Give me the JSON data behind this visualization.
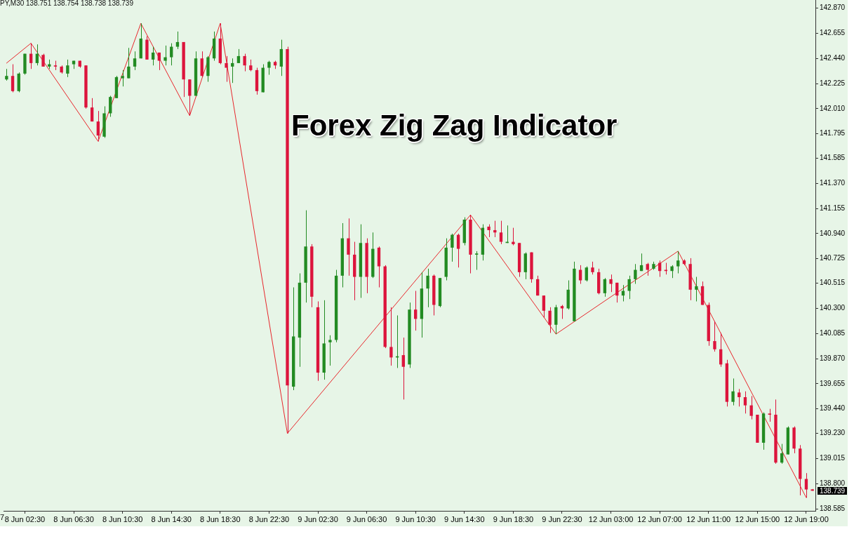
{
  "chart_data": {
    "type": "candlestick",
    "title": "Forex Zig Zag Indicator",
    "annotations": [
      "PY,M30 138.751 138.754 138.738 138.739",
      "7",
      "138.739"
    ],
    "categories": [
      null,
      null,
      null,
      "8 Jun 02:30",
      null,
      null,
      null,
      null,
      null,
      null,
      null,
      "8 Jun 06:30",
      null,
      null,
      null,
      null,
      null,
      null,
      null,
      "8 Jun 10:30",
      null,
      null,
      null,
      null,
      null,
      null,
      null,
      "8 Jun 14:30",
      null,
      null,
      null,
      null,
      null,
      null,
      null,
      "8 Jun 18:30",
      null,
      null,
      null,
      null,
      null,
      null,
      null,
      "8 Jun 22:30",
      null,
      null,
      null,
      null,
      null,
      null,
      null,
      "9 Jun 02:30",
      null,
      null,
      null,
      null,
      null,
      null,
      null,
      "9 Jun 06:30",
      null,
      null,
      null,
      null,
      null,
      null,
      null,
      "9 Jun 10:30",
      null,
      null,
      null,
      null,
      null,
      null,
      null,
      "9 Jun 14:30",
      null,
      null,
      null,
      null,
      null,
      null,
      null,
      "9 Jun 18:30",
      null,
      null,
      null,
      null,
      null,
      null,
      null,
      "9 Jun 22:30",
      null,
      null,
      null,
      null,
      null,
      null,
      null,
      "12 Jun 03:00",
      null,
      null,
      null,
      null,
      null,
      null,
      null,
      "12 Jun 07:00",
      null,
      null,
      null,
      null,
      null,
      null,
      null,
      "12 Jun 11:00",
      null,
      null,
      null,
      null,
      null,
      null,
      null,
      "12 Jun 15:00",
      null,
      null,
      null,
      null,
      null,
      null,
      null,
      "12 Jun 19:00",
      null
    ],
    "ohlc": [
      [
        142.26,
        142.35,
        142.25,
        142.29
      ],
      [
        142.29,
        142.39,
        142.15,
        142.16
      ],
      [
        142.16,
        142.32,
        142.15,
        142.31
      ],
      [
        142.31,
        142.48,
        142.3,
        142.48
      ],
      [
        142.48,
        142.57,
        142.35,
        142.4
      ],
      [
        142.4,
        142.56,
        142.38,
        142.48
      ],
      [
        142.47,
        142.48,
        142.37,
        142.37
      ],
      [
        142.37,
        142.43,
        142.35,
        142.39
      ],
      [
        142.38,
        142.42,
        142.34,
        142.37
      ],
      [
        142.37,
        142.38,
        142.31,
        142.32
      ],
      [
        142.31,
        142.43,
        142.28,
        142.38
      ],
      [
        142.39,
        142.42,
        142.35,
        142.42
      ],
      [
        142.42,
        142.42,
        142.36,
        142.37
      ],
      [
        142.38,
        142.38,
        142.01,
        142.02
      ],
      [
        142.02,
        142.1,
        141.9,
        141.9
      ],
      [
        141.9,
        141.99,
        141.73,
        141.78
      ],
      [
        141.77,
        142.03,
        141.76,
        141.97
      ],
      [
        141.97,
        142.12,
        141.94,
        142.11
      ],
      [
        142.1,
        142.29,
        142.1,
        142.28
      ],
      [
        142.27,
        142.34,
        142.2,
        142.29
      ],
      [
        142.27,
        142.53,
        142.27,
        142.37
      ],
      [
        142.37,
        142.5,
        142.34,
        142.44
      ],
      [
        142.44,
        142.74,
        142.44,
        142.61
      ],
      [
        142.6,
        142.63,
        142.43,
        142.43
      ],
      [
        142.43,
        142.54,
        142.38,
        142.49
      ],
      [
        142.49,
        142.49,
        142.34,
        142.42
      ],
      [
        142.42,
        142.55,
        142.38,
        142.45
      ],
      [
        142.45,
        142.57,
        142.38,
        142.54
      ],
      [
        142.54,
        142.67,
        142.52,
        142.58
      ],
      [
        142.58,
        142.58,
        142.11,
        142.26
      ],
      [
        142.26,
        142.26,
        141.95,
        142.12
      ],
      [
        142.12,
        142.5,
        142.12,
        142.44
      ],
      [
        142.44,
        142.5,
        142.28,
        142.29
      ],
      [
        142.29,
        142.46,
        142.24,
        142.45
      ],
      [
        142.44,
        142.67,
        142.42,
        142.61
      ],
      [
        142.61,
        142.74,
        142.39,
        142.4
      ],
      [
        142.4,
        142.46,
        142.24,
        142.36
      ],
      [
        142.37,
        142.44,
        142.23,
        142.4
      ],
      [
        142.4,
        142.52,
        142.4,
        142.46
      ],
      [
        142.46,
        142.48,
        142.33,
        142.38
      ],
      [
        142.38,
        142.43,
        142.33,
        142.34
      ],
      [
        142.34,
        142.36,
        142.13,
        142.16
      ],
      [
        142.15,
        142.39,
        142.15,
        142.36
      ],
      [
        142.36,
        142.42,
        142.3,
        142.41
      ],
      [
        142.41,
        142.42,
        142.35,
        142.38
      ],
      [
        142.37,
        142.6,
        142.29,
        142.52
      ],
      [
        142.52,
        142.54,
        139.23,
        139.64
      ],
      [
        139.63,
        140.48,
        139.6,
        140.06
      ],
      [
        140.05,
        140.6,
        139.8,
        140.52
      ],
      [
        140.52,
        141.14,
        140.35,
        140.83
      ],
      [
        140.83,
        140.85,
        140.31,
        140.4
      ],
      [
        140.31,
        140.36,
        139.68,
        139.75
      ],
      [
        139.75,
        140.37,
        139.69,
        140.0
      ],
      [
        140.01,
        140.07,
        139.81,
        140.03
      ],
      [
        140.03,
        140.63,
        140.01,
        140.58
      ],
      [
        140.58,
        141.03,
        140.48,
        140.9
      ],
      [
        140.9,
        141.07,
        140.58,
        140.76
      ],
      [
        140.76,
        140.87,
        140.37,
        140.57
      ],
      [
        140.57,
        141.02,
        140.39,
        140.86
      ],
      [
        140.86,
        140.9,
        140.43,
        140.57
      ],
      [
        140.57,
        140.95,
        140.56,
        140.81
      ],
      [
        140.82,
        140.83,
        140.48,
        140.66
      ],
      [
        140.66,
        140.67,
        139.96,
        139.97
      ],
      [
        139.97,
        140.31,
        139.81,
        139.88
      ],
      [
        139.88,
        140.24,
        139.79,
        139.89
      ],
      [
        139.9,
        140.05,
        139.52,
        139.8
      ],
      [
        139.82,
        140.35,
        139.79,
        140.29
      ],
      [
        140.29,
        140.45,
        140.11,
        140.21
      ],
      [
        140.21,
        140.61,
        140.05,
        140.47
      ],
      [
        140.47,
        140.64,
        140.31,
        140.58
      ],
      [
        140.58,
        140.59,
        140.24,
        140.33
      ],
      [
        140.32,
        140.56,
        140.31,
        140.56
      ],
      [
        140.57,
        140.9,
        140.54,
        140.82
      ],
      [
        140.82,
        140.94,
        140.7,
        140.93
      ],
      [
        140.93,
        140.94,
        140.65,
        140.81
      ],
      [
        140.86,
        141.08,
        140.84,
        141.06
      ],
      [
        141.06,
        141.1,
        140.6,
        140.76
      ],
      [
        140.76,
        140.79,
        140.63,
        140.77
      ],
      [
        140.76,
        141.02,
        140.71,
        140.99
      ],
      [
        141.0,
        141.02,
        140.91,
        140.97
      ],
      [
        140.97,
        141.05,
        140.91,
        140.95
      ],
      [
        140.95,
        141.05,
        140.85,
        140.87
      ],
      [
        140.86,
        141.01,
        140.86,
        140.87
      ],
      [
        140.87,
        140.99,
        140.84,
        140.85
      ],
      [
        140.86,
        140.86,
        140.57,
        140.61
      ],
      [
        140.61,
        140.78,
        140.55,
        140.77
      ],
      [
        140.78,
        140.78,
        140.52,
        140.55
      ],
      [
        140.55,
        140.58,
        140.41,
        140.41
      ],
      [
        140.41,
        140.41,
        140.22,
        140.28
      ],
      [
        140.28,
        140.31,
        140.09,
        140.16
      ],
      [
        140.16,
        140.33,
        140.08,
        140.31
      ],
      [
        140.32,
        140.33,
        140.21,
        140.3
      ],
      [
        140.3,
        140.54,
        140.29,
        140.46
      ],
      [
        140.19,
        140.7,
        140.19,
        140.64
      ],
      [
        140.63,
        140.67,
        140.51,
        140.54
      ],
      [
        140.54,
        140.66,
        140.53,
        140.65
      ],
      [
        140.65,
        140.7,
        140.59,
        140.61
      ],
      [
        140.61,
        140.64,
        140.42,
        140.43
      ],
      [
        140.43,
        140.56,
        140.4,
        140.55
      ],
      [
        140.55,
        140.59,
        140.44,
        140.51
      ],
      [
        140.52,
        140.52,
        140.35,
        140.41
      ],
      [
        140.41,
        140.5,
        140.36,
        140.45
      ],
      [
        140.45,
        140.58,
        140.38,
        140.55
      ],
      [
        140.55,
        140.68,
        140.51,
        140.63
      ],
      [
        140.62,
        140.77,
        140.62,
        140.67
      ],
      [
        140.68,
        140.69,
        140.58,
        140.63
      ],
      [
        140.64,
        140.7,
        140.63,
        140.68
      ],
      [
        140.69,
        140.71,
        140.57,
        140.62
      ],
      [
        140.63,
        140.69,
        140.59,
        140.62
      ],
      [
        140.62,
        140.67,
        140.56,
        140.66
      ],
      [
        140.66,
        140.79,
        140.6,
        140.71
      ],
      [
        140.71,
        140.72,
        140.67,
        140.68
      ],
      [
        140.68,
        140.73,
        140.37,
        140.46
      ],
      [
        140.46,
        140.57,
        140.36,
        140.49
      ],
      [
        140.49,
        140.53,
        140.33,
        140.33
      ],
      [
        140.33,
        140.35,
        139.98,
        140.02
      ],
      [
        140.02,
        140.19,
        139.93,
        139.95
      ],
      [
        139.95,
        140.09,
        139.8,
        139.82
      ],
      [
        139.83,
        139.86,
        139.46,
        139.5
      ],
      [
        139.5,
        139.7,
        139.47,
        139.59
      ],
      [
        139.58,
        139.61,
        139.46,
        139.54
      ],
      [
        139.54,
        139.59,
        139.4,
        139.47
      ],
      [
        139.47,
        139.55,
        139.35,
        139.38
      ],
      [
        139.39,
        139.39,
        139.15,
        139.15
      ],
      [
        139.15,
        139.41,
        139.09,
        139.4
      ],
      [
        139.4,
        139.44,
        139.33,
        139.39
      ],
      [
        139.39,
        139.52,
        138.97,
        138.98
      ],
      [
        138.98,
        139.14,
        138.97,
        139.06
      ],
      [
        139.05,
        139.29,
        139.05,
        139.28
      ],
      [
        139.28,
        139.29,
        139.06,
        139.1
      ],
      [
        139.1,
        139.13,
        138.7,
        138.84
      ],
      [
        138.84,
        138.89,
        138.68,
        138.75
      ],
      [
        138.751,
        138.754,
        138.738,
        138.739
      ]
    ],
    "colors": [
      "#228b22",
      "#dc143c",
      "#228b22",
      "#228b22",
      "#dc143c",
      "#228b22",
      "#dc143c",
      "#228b22",
      "#dc143c",
      "#dc143c",
      "#228b22",
      "#228b22",
      "#dc143c",
      "#dc143c",
      "#dc143c",
      "#dc143c",
      "#228b22",
      "#228b22",
      "#228b22",
      "#228b22",
      "#228b22",
      "#228b22",
      "#228b22",
      "#dc143c",
      "#228b22",
      "#dc143c",
      "#228b22",
      "#228b22",
      "#228b22",
      "#dc143c",
      "#dc143c",
      "#228b22",
      "#dc143c",
      "#228b22",
      "#228b22",
      "#dc143c",
      "#dc143c",
      "#228b22",
      "#228b22",
      "#dc143c",
      "#dc143c",
      "#dc143c",
      "#228b22",
      "#228b22",
      "#dc143c",
      "#228b22",
      "#dc143c",
      "#228b22",
      "#228b22",
      "#228b22",
      "#dc143c",
      "#dc143c",
      "#228b22",
      "#228b22",
      "#228b22",
      "#228b22",
      "#dc143c",
      "#dc143c",
      "#228b22",
      "#dc143c",
      "#228b22",
      "#dc143c",
      "#dc143c",
      "#dc143c",
      "#228b22",
      "#dc143c",
      "#228b22",
      "#dc143c",
      "#228b22",
      "#228b22",
      "#dc143c",
      "#228b22",
      "#228b22",
      "#228b22",
      "#dc143c",
      "#228b22",
      "#dc143c",
      "#228b22",
      "#228b22",
      "#dc143c",
      "#dc143c",
      "#dc143c",
      "#228b22",
      "#dc143c",
      "#dc143c",
      "#228b22",
      "#dc143c",
      "#dc143c",
      "#dc143c",
      "#dc143c",
      "#228b22",
      "#dc143c",
      "#228b22",
      "#228b22",
      "#dc143c",
      "#228b22",
      "#dc143c",
      "#dc143c",
      "#228b22",
      "#dc143c",
      "#dc143c",
      "#228b22",
      "#228b22",
      "#228b22",
      "#228b22",
      "#dc143c",
      "#228b22",
      "#dc143c",
      "#dc143c",
      "#228b22",
      "#228b22",
      "#dc143c",
      "#dc143c",
      "#228b22",
      "#dc143c",
      "#dc143c",
      "#dc143c",
      "#dc143c",
      "#dc143c",
      "#228b22",
      "#dc143c",
      "#dc143c",
      "#dc143c",
      "#dc143c",
      "#228b22",
      "#dc143c",
      "#dc143c",
      "#228b22",
      "#228b22",
      "#dc143c",
      "#dc143c",
      "#dc143c",
      "#dc143c"
    ],
    "series": [
      {
        "type": "line",
        "color": "#e8262b",
        "marker": "none",
        "values": [
          142.4,
          null,
          null,
          null,
          142.57,
          null,
          null,
          null,
          null,
          null,
          null,
          null,
          null,
          null,
          null,
          141.73,
          null,
          null,
          null,
          null,
          null,
          null,
          142.74,
          null,
          null,
          null,
          null,
          null,
          null,
          null,
          141.95,
          null,
          null,
          null,
          null,
          142.74,
          null,
          null,
          null,
          null,
          null,
          null,
          null,
          null,
          null,
          null,
          139.23,
          null,
          null,
          null,
          null,
          null,
          null,
          null,
          null,
          null,
          null,
          null,
          null,
          null,
          null,
          null,
          null,
          null,
          null,
          null,
          null,
          null,
          null,
          null,
          null,
          null,
          null,
          null,
          null,
          null,
          141.1,
          null,
          null,
          null,
          null,
          null,
          null,
          null,
          null,
          null,
          null,
          null,
          null,
          null,
          140.08,
          null,
          null,
          null,
          null,
          null,
          null,
          null,
          null,
          null,
          null,
          null,
          null,
          null,
          null,
          null,
          null,
          null,
          null,
          null,
          140.79,
          null,
          null,
          null,
          null,
          null,
          null,
          null,
          null,
          null,
          null,
          null,
          null,
          null,
          null,
          null,
          null,
          null,
          null,
          null,
          null,
          138.68,
          null
        ]
      }
    ],
    "ylim": [
      138.567,
      142.94
    ],
    "yticks": [
      {
        "value": 142.87,
        "label": "142.870"
      },
      {
        "value": 142.655,
        "label": "142.655"
      },
      {
        "value": 142.44,
        "label": "142.440"
      },
      {
        "value": 142.225,
        "label": "142.225"
      },
      {
        "value": 142.01,
        "label": "142.010"
      },
      {
        "value": 141.795,
        "label": "141.795"
      },
      {
        "value": 141.585,
        "label": "141.585"
      },
      {
        "value": 141.37,
        "label": "141.370"
      },
      {
        "value": 141.155,
        "label": "141.155"
      },
      {
        "value": 140.94,
        "label": "140.940"
      },
      {
        "value": 140.725,
        "label": "140.725"
      },
      {
        "value": 140.515,
        "label": "140.515"
      },
      {
        "value": 140.3,
        "label": "140.300"
      },
      {
        "value": 140.085,
        "label": "140.085"
      },
      {
        "value": 139.87,
        "label": "139.870"
      },
      {
        "value": 139.655,
        "label": "139.655"
      },
      {
        "value": 139.44,
        "label": "139.440"
      },
      {
        "value": 139.23,
        "label": "139.230"
      },
      {
        "value": 139.015,
        "label": "139.015"
      },
      {
        "value": 138.8,
        "label": "138.800"
      },
      {
        "value": 138.585,
        "label": "138.585"
      }
    ]
  }
}
